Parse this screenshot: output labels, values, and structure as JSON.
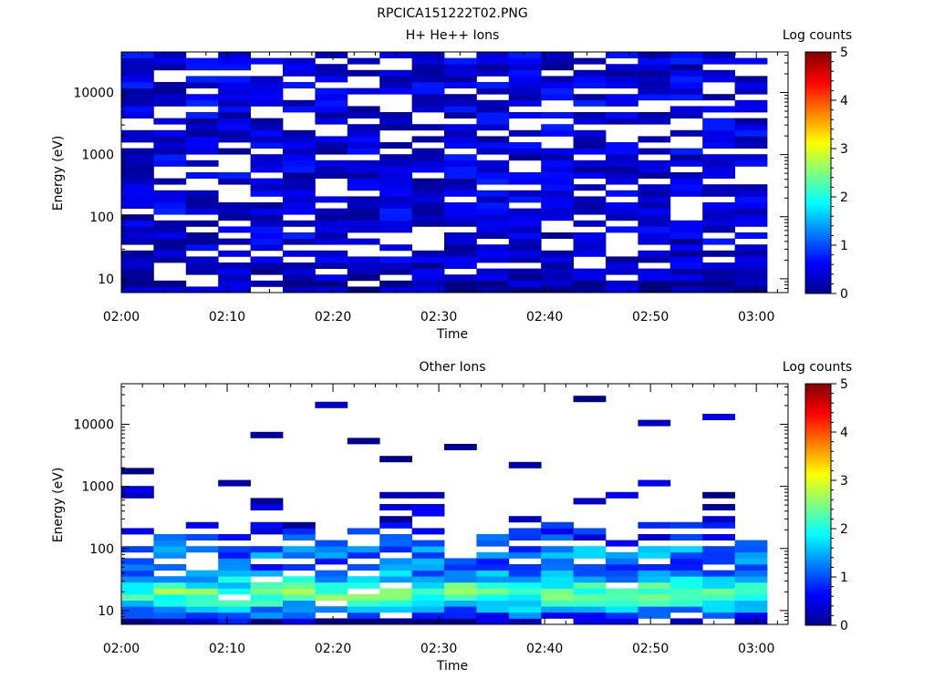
{
  "figure_title": "RPCICA151222T02.PNG",
  "chart_data": [
    {
      "type": "heatmap",
      "title": "H+ He++ Ions",
      "xlabel": "Time",
      "ylabel": "Energy (eV)",
      "x_ticks": [
        "02:00",
        "02:10",
        "02:20",
        "02:30",
        "02:40",
        "02:50",
        "03:00"
      ],
      "x_range": [
        "02:00",
        "03:03"
      ],
      "y_scale": "log",
      "y_ticks": [
        "10",
        "100",
        "1000",
        "10000"
      ],
      "ylim": [
        6,
        45000
      ],
      "colorbar": {
        "label": "Log counts",
        "ticks": [
          "0",
          "1",
          "2",
          "3",
          "4",
          "5"
        ],
        "range": [
          0,
          5
        ]
      },
      "time_bins": 20,
      "energy_bins": 40,
      "profile": {
        "fill_prob": [
          0.92,
          0.9,
          0.8,
          0.78,
          0.72,
          0.7,
          0.72,
          0.75,
          0.72,
          0.72,
          0.72,
          0.72,
          0.72,
          0.72,
          0.72,
          0.7,
          0.72,
          0.75,
          0.75,
          0.75,
          0.75,
          0.75,
          0.75,
          0.75,
          0.75,
          0.75,
          0.75,
          0.75,
          0.75,
          0.75,
          0.75,
          0.75,
          0.75,
          0.75,
          0.75,
          0.75,
          0.75,
          0.75,
          0.75,
          0.75
        ],
        "level_mean": [
          0.2,
          0.2,
          0.25,
          0.3,
          0.35,
          0.4,
          0.4,
          0.4,
          0.4,
          0.45,
          0.45,
          0.45,
          0.45,
          0.45,
          0.45,
          0.45,
          0.45,
          0.45,
          0.45,
          0.45,
          0.45,
          0.45,
          0.45,
          0.45,
          0.45,
          0.45,
          0.45,
          0.45,
          0.45,
          0.45,
          0.45,
          0.45,
          0.45,
          0.45,
          0.45,
          0.45,
          0.45,
          0.45,
          0.45,
          0.45
        ],
        "level_spread": 0.35,
        "seed": 17
      }
    },
    {
      "type": "heatmap",
      "title": "Other Ions",
      "xlabel": "Time",
      "ylabel": "Energy (eV)",
      "x_ticks": [
        "02:00",
        "02:10",
        "02:20",
        "02:30",
        "02:40",
        "02:50",
        "03:00"
      ],
      "x_range": [
        "02:00",
        "03:03"
      ],
      "y_scale": "log",
      "y_ticks": [
        "10",
        "100",
        "1000",
        "10000"
      ],
      "ylim": [
        6,
        45000
      ],
      "colorbar": {
        "label": "Log counts",
        "ticks": [
          "0",
          "1",
          "2",
          "3",
          "4",
          "5"
        ],
        "range": [
          0,
          5
        ]
      },
      "time_bins": 20,
      "energy_bins": 40,
      "profile": {
        "fill_prob": [
          0.75,
          0.85,
          0.9,
          0.92,
          0.95,
          0.95,
          0.9,
          0.85,
          0.85,
          0.8,
          0.75,
          0.7,
          0.65,
          0.6,
          0.55,
          0.45,
          0.35,
          0.25,
          0.2,
          0.15,
          0.12,
          0.1,
          0.08,
          0.07,
          0.06,
          0.05,
          0.05,
          0.05,
          0.05,
          0.05,
          0.04,
          0.04,
          0.04,
          0.04,
          0.03,
          0.03,
          0.03,
          0.02,
          0.02,
          0.01
        ],
        "level_mean": [
          0.3,
          0.9,
          1.3,
          1.8,
          2.2,
          2.3,
          2.0,
          1.6,
          1.3,
          1.1,
          1.1,
          1.2,
          1.2,
          1.1,
          0.9,
          0.7,
          0.55,
          0.45,
          0.4,
          0.35,
          0.3,
          0.3,
          0.3,
          0.3,
          0.3,
          0.3,
          0.3,
          0.3,
          0.3,
          0.3,
          0.3,
          0.3,
          0.3,
          0.3,
          0.3,
          0.3,
          0.3,
          0.3,
          0.3,
          0.3
        ],
        "level_spread": 0.5,
        "seed": 53
      }
    }
  ]
}
